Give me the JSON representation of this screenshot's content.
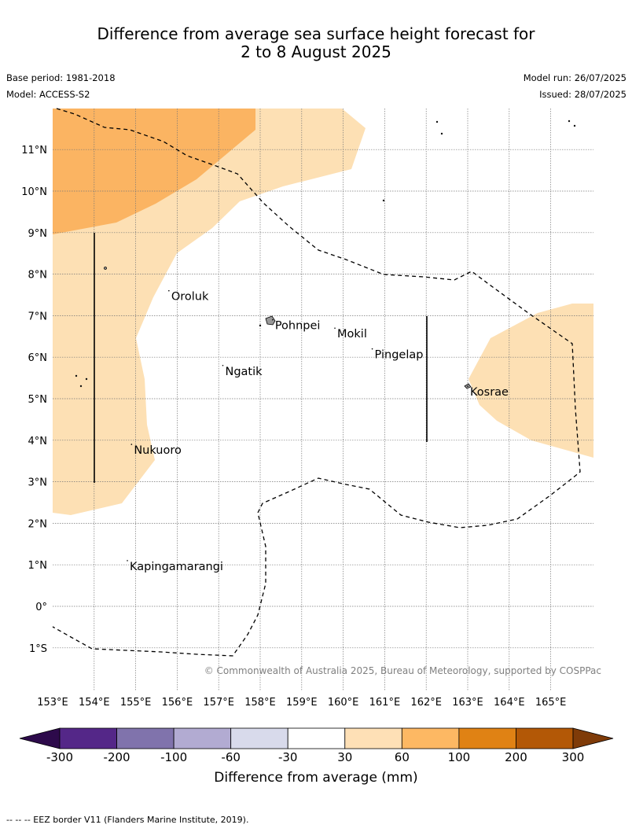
{
  "title": {
    "line1": "Difference from average sea surface height forecast for",
    "line2": "2 to 8 August 2025"
  },
  "meta": {
    "base_period": "Base period: 1981-2018",
    "model": "Model: ACCESS-S2",
    "model_run": "Model run: 26/07/2025",
    "issued": "Issued: 28/07/2025"
  },
  "map": {
    "lat_labels": [
      "11°N",
      "10°N",
      "9°N",
      "8°N",
      "7°N",
      "6°N",
      "5°N",
      "4°N",
      "3°N",
      "2°N",
      "1°N",
      "0°",
      "1°S"
    ],
    "lon_labels": [
      "153°E",
      "154°E",
      "155°E",
      "156°E",
      "157°E",
      "158°E",
      "159°E",
      "160°E",
      "161°E",
      "162°E",
      "163°E",
      "164°E",
      "165°E"
    ],
    "places": [
      {
        "name": "Oroluk",
        "lon": 155.8,
        "lat": 7.6
      },
      {
        "name": "Pohnpei",
        "lon": 158.3,
        "lat": 6.9
      },
      {
        "name": "Mokil",
        "lon": 159.8,
        "lat": 6.7
      },
      {
        "name": "Pingelap",
        "lon": 160.7,
        "lat": 6.2
      },
      {
        "name": "Ngatik",
        "lon": 157.1,
        "lat": 5.8
      },
      {
        "name": "Kosrae",
        "lon": 163.0,
        "lat": 5.3
      },
      {
        "name": "Nukuoro",
        "lon": 154.9,
        "lat": 3.9
      },
      {
        "name": "Kapingamarangi",
        "lon": 154.8,
        "lat": 1.1
      }
    ],
    "copyright": "© Commonwealth of Australia 2025, Bureau of Meteorology, supported by COSPPac",
    "colors": {
      "land": "#999999",
      "band_30_60": "#fde0b4",
      "band_60_100": "#fbb462",
      "eez_line": "#000000"
    }
  },
  "colorbar": {
    "ticks": [
      "-300",
      "-200",
      "-100",
      "-60",
      "-30",
      "30",
      "60",
      "100",
      "200",
      "300"
    ],
    "colors": [
      "#2d0a4b",
      "#542788",
      "#8073ac",
      "#b2abd2",
      "#d8daeb",
      "#ffffff",
      "#fee0b6",
      "#fdb863",
      "#e08214",
      "#b35806",
      "#7f3b08"
    ],
    "label": "Difference from average (mm)"
  },
  "footnote": "--  --  -- EEZ border V11 (Flanders Marine Institute, 2019)."
}
